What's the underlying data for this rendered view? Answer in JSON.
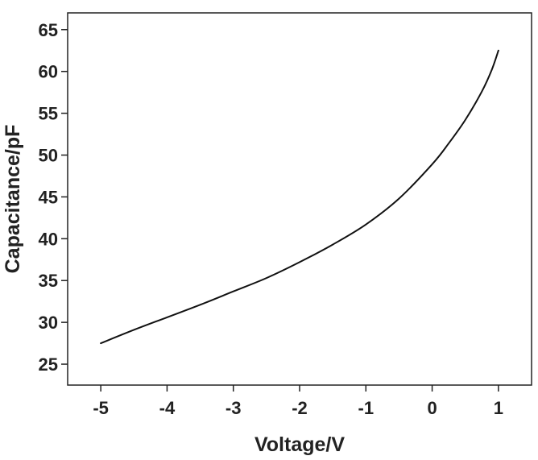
{
  "chart_data": {
    "type": "line",
    "xlabel": "Voltage/V",
    "ylabel": "Capacitance/pF",
    "xlim": [
      -5.5,
      1.5
    ],
    "ylim": [
      22.5,
      67
    ],
    "x_ticks": [
      -5,
      -4,
      -3,
      -2,
      -1,
      0,
      1
    ],
    "y_ticks": [
      25,
      30,
      35,
      40,
      45,
      50,
      55,
      60,
      65
    ],
    "x_tick_labels": [
      "-5",
      "-4",
      "-3",
      "-2",
      "-1",
      "0",
      "1"
    ],
    "y_tick_labels": [
      "25",
      "30",
      "35",
      "40",
      "45",
      "50",
      "55",
      "60",
      "65"
    ],
    "grid": false,
    "line_color": "#111111",
    "series": [
      {
        "x": [
          -5,
          -4.5,
          -4,
          -3.5,
          -3,
          -2.5,
          -2,
          -1.5,
          -1,
          -0.5,
          0,
          0.25,
          0.5,
          0.75,
          0.9,
          1
        ],
        "y": [
          27.5,
          29.1,
          30.6,
          32.1,
          33.7,
          35.3,
          37.2,
          39.3,
          41.7,
          44.8,
          48.9,
          51.4,
          54.2,
          57.6,
          60.2,
          62.5
        ]
      }
    ]
  }
}
